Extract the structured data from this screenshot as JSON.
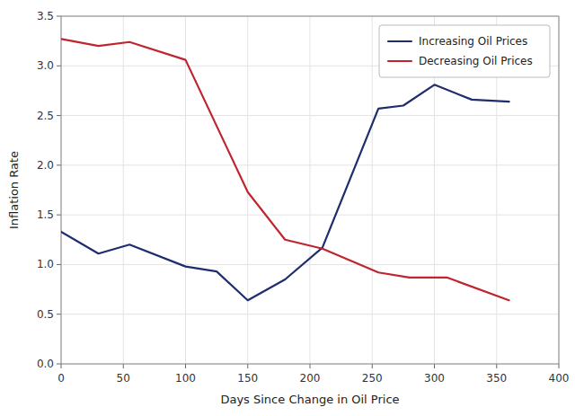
{
  "chart_data": {
    "type": "line",
    "xlabel": "Days Since Change in Oil Price",
    "ylabel": "Inflation Rate",
    "xlim": [
      0,
      400
    ],
    "ylim": [
      0.0,
      3.5
    ],
    "xticks": [
      0,
      50,
      100,
      150,
      200,
      250,
      300,
      350,
      400
    ],
    "yticks": [
      {
        "value": 0.0,
        "label": "0.0"
      },
      0.5,
      {
        "value": 1.0,
        "label": "1.0"
      },
      1.5,
      {
        "value": 2.0,
        "label": "2.0"
      },
      2.5,
      {
        "value": 3.0,
        "label": "3.0"
      },
      3.5
    ],
    "grid": true,
    "legend": "upper right",
    "series": [
      {
        "name": "Increasing Oil Prices",
        "color": "#1F2D6E",
        "x": [
          0,
          30,
          55,
          100,
          125,
          150,
          180,
          210,
          255,
          275,
          300,
          330,
          360
        ],
        "values": [
          1.33,
          1.11,
          1.2,
          0.98,
          0.93,
          0.64,
          0.85,
          1.17,
          2.57,
          2.6,
          2.81,
          2.66,
          2.64
        ]
      },
      {
        "name": "Decreasing Oil Prices",
        "color": "#C0252D",
        "x": [
          0,
          30,
          55,
          100,
          150,
          180,
          210,
          255,
          280,
          310,
          360
        ],
        "values": [
          3.27,
          3.2,
          3.24,
          3.06,
          1.73,
          1.25,
          1.16,
          0.92,
          0.87,
          0.87,
          0.64
        ]
      }
    ]
  }
}
